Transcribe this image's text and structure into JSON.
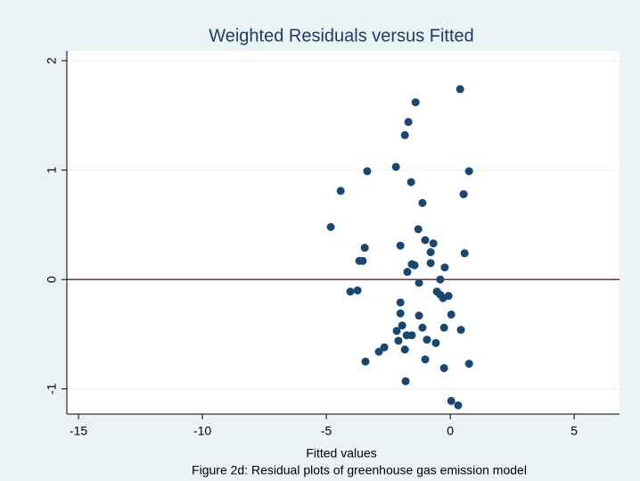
{
  "chart_data": {
    "type": "scatter",
    "title": "Weighted Residuals versus Fitted",
    "x_label": "Fitted values",
    "caption": "Figure 2d: Residual plots of greenhouse gas emission model",
    "color": "#1a476f",
    "grid": true,
    "refline": {
      "value": 0,
      "color": "#a0153e"
    },
    "xlim": [
      -15.47,
      6.83
    ],
    "ylim": [
      -1.23,
      2.09
    ],
    "xticks": [
      -15,
      -10,
      -5,
      0,
      5
    ],
    "yticks": [
      -1,
      0,
      1,
      2
    ],
    "x": [
      0.4,
      -1.4,
      -1.69,
      -1.83,
      -2.19,
      -3.35,
      0.76,
      -4.42,
      -1.58,
      0.54,
      -1.12,
      -4.82,
      -1.29,
      -3.45,
      -2.01,
      -1.01,
      -0.68,
      -0.79,
      0.58,
      -3.67,
      -3.53,
      -1.55,
      -1.44,
      -0.79,
      -1.73,
      -0.22,
      -0.4,
      -1.26,
      -4.03,
      -3.74,
      -0.54,
      -0.4,
      -0.29,
      -0.07,
      -2.01,
      -2.01,
      0.04,
      -1.26,
      -1.94,
      -1.12,
      -0.25,
      -2.16,
      0.43,
      -1.76,
      -1.55,
      -2.09,
      -0.94,
      -0.58,
      -2.66,
      -2.88,
      -1.83,
      -3.42,
      -1.01,
      0.76,
      -0.25,
      -1.8,
      0.04,
      0.32
    ],
    "y": [
      1.74,
      1.62,
      1.44,
      1.32,
      1.03,
      0.99,
      0.99,
      0.81,
      0.89,
      0.78,
      0.7,
      0.48,
      0.46,
      0.29,
      0.31,
      0.36,
      0.33,
      0.25,
      0.24,
      0.17,
      0.17,
      0.14,
      0.13,
      0.15,
      0.07,
      0.11,
      0.0,
      -0.03,
      -0.11,
      -0.1,
      -0.11,
      -0.14,
      -0.17,
      -0.15,
      -0.21,
      -0.31,
      -0.32,
      -0.33,
      -0.42,
      -0.44,
      -0.44,
      -0.47,
      -0.46,
      -0.51,
      -0.51,
      -0.56,
      -0.55,
      -0.58,
      -0.62,
      -0.66,
      -0.64,
      -0.75,
      -0.73,
      -0.77,
      -0.81,
      -0.93,
      -1.11,
      -1.15
    ]
  }
}
